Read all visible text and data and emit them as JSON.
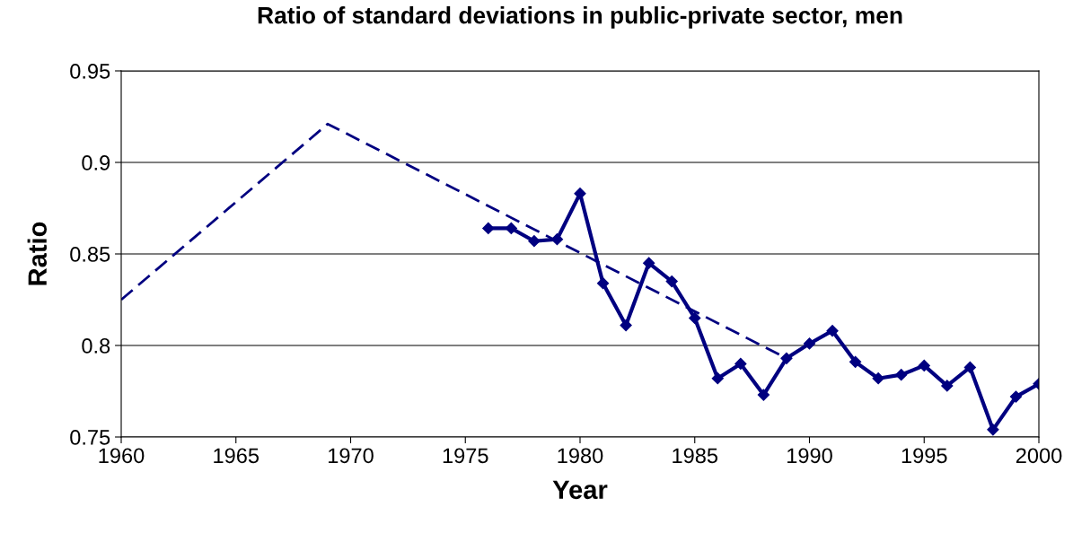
{
  "chart_data": {
    "type": "line",
    "title": "Ratio of standard deviations in public-private sector, men",
    "xlabel": "Year",
    "ylabel": "Ratio",
    "xlim": [
      1960,
      2000
    ],
    "xticks": [
      1960,
      1965,
      1970,
      1975,
      1980,
      1985,
      1990,
      1995,
      2000
    ],
    "ylim": [
      0.75,
      0.95
    ],
    "yticks": [
      0.75,
      0.8,
      0.85,
      0.9,
      0.95
    ],
    "grid": "y",
    "legend": false,
    "series": [
      {
        "color": "#000080",
        "line_style": "dashed",
        "marker": "none",
        "x": [
          1960,
          1969,
          1989
        ],
        "values": [
          0.825,
          0.921,
          0.793
        ]
      },
      {
        "color": "#000080",
        "line_style": "solid",
        "marker": "diamond",
        "x": [
          1976,
          1977,
          1978,
          1979,
          1980,
          1981,
          1982,
          1983,
          1984,
          1985,
          1986,
          1987,
          1988,
          1989,
          1990,
          1991,
          1992,
          1993,
          1994,
          1995,
          1996,
          1997,
          1998,
          1999,
          2000
        ],
        "values": [
          0.864,
          0.864,
          0.857,
          0.858,
          0.883,
          0.834,
          0.811,
          0.845,
          0.835,
          0.815,
          0.782,
          0.79,
          0.773,
          0.793,
          0.801,
          0.808,
          0.791,
          0.782,
          0.784,
          0.789,
          0.778,
          0.788,
          0.754,
          0.772,
          0.779
        ]
      }
    ]
  }
}
